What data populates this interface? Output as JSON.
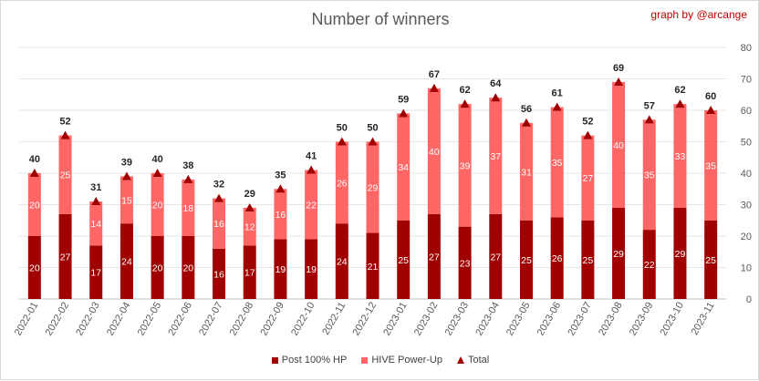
{
  "chart_data": {
    "type": "bar",
    "title": "Number of winners",
    "credit": "graph by @arcange",
    "categories": [
      "2022-01",
      "2022-02",
      "2022-03",
      "2022-04",
      "2022-05",
      "2022-06",
      "2022-07",
      "2022-08",
      "2022-09",
      "2022-10",
      "2022-11",
      "2022-12",
      "2023-01",
      "2023-02",
      "2023-03",
      "2023-04",
      "2023-05",
      "2023-06",
      "2023-07",
      "2023-08",
      "2023-09",
      "2023-10",
      "2023-11"
    ],
    "series": [
      {
        "name": "Post 100% HP",
        "color": "#a00000",
        "values": [
          20,
          27,
          17,
          24,
          20,
          20,
          16,
          17,
          19,
          19,
          24,
          21,
          25,
          27,
          23,
          27,
          25,
          26,
          25,
          29,
          22,
          29,
          25
        ]
      },
      {
        "name": "HIVE Power-Up",
        "color": "#ff6666",
        "values": [
          20,
          25,
          14,
          15,
          20,
          18,
          16,
          12,
          16,
          22,
          26,
          29,
          34,
          40,
          39,
          37,
          31,
          35,
          27,
          40,
          35,
          33,
          35
        ]
      },
      {
        "name": "Total",
        "color": "#a00000",
        "type": "marker",
        "values": [
          40,
          52,
          31,
          39,
          40,
          38,
          32,
          29,
          35,
          41,
          50,
          50,
          59,
          67,
          62,
          64,
          56,
          61,
          52,
          69,
          57,
          62,
          60
        ]
      }
    ],
    "ylim": [
      0,
      80
    ],
    "yticks": [
      0,
      10,
      20,
      30,
      40,
      50,
      60,
      70,
      80
    ],
    "y_axis_side": "right",
    "grid": true,
    "legend": "bottom"
  }
}
